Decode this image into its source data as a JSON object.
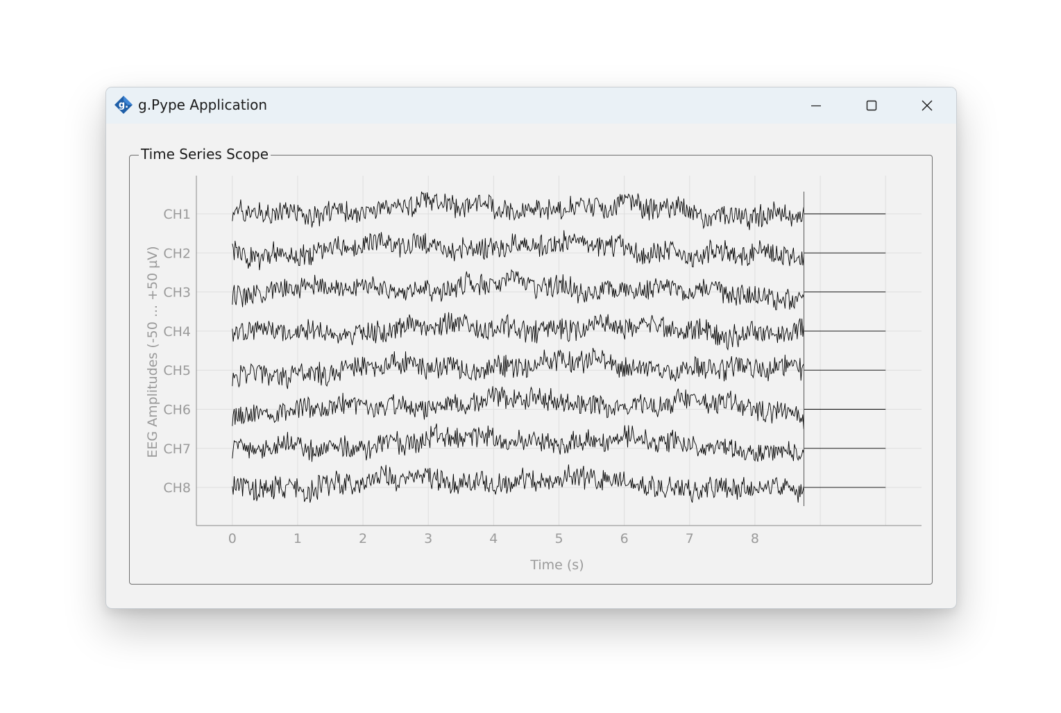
{
  "window": {
    "title": "g.Pype Application",
    "icon": "g-logo-icon",
    "controls": [
      "minimize-icon",
      "maximize-icon",
      "close-icon"
    ]
  },
  "scope": {
    "group_title": "Time Series Scope"
  },
  "chart_data": {
    "type": "line",
    "title": "",
    "xlabel": "Time (s)",
    "ylabel": "EEG Amplitudes (-50 ... +50 µV)",
    "x_ticks": [
      0,
      1,
      2,
      3,
      4,
      5,
      6,
      7,
      8
    ],
    "xlim": [
      -0.55,
      10.55
    ],
    "signal_end_s": 8.75,
    "flat_until_s": 10.0,
    "amplitude_range_uV": [
      -50,
      50
    ],
    "grid": true,
    "line_color": "#000000",
    "channels": [
      "CH1",
      "CH2",
      "CH3",
      "CH4",
      "CH5",
      "CH6",
      "CH7",
      "CH8"
    ]
  }
}
